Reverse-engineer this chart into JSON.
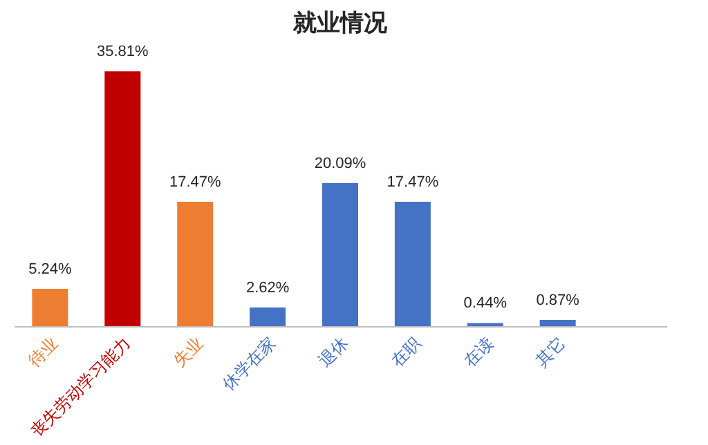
{
  "chart_data": {
    "type": "bar",
    "title": "就业情况",
    "categories": [
      "待业",
      "丧失劳动学习能力",
      "失业",
      "休学在家",
      "退休",
      "在职",
      "在读",
      "其它",
      null
    ],
    "values": [
      5.24,
      35.81,
      17.47,
      2.62,
      20.09,
      17.47,
      0.44,
      0.87,
      null
    ],
    "colors": [
      "#ed7d31",
      "#c00000",
      "#ed7d31",
      "#4472c4",
      "#4472c4",
      "#4472c4",
      "#4472c4",
      "#4472c4",
      null
    ],
    "value_labels": [
      "5.24%",
      "35.81%",
      "17.47%",
      "2.62%",
      "20.09%",
      "17.47%",
      "0.44%",
      "0.87%",
      null
    ],
    "grid": false
  }
}
